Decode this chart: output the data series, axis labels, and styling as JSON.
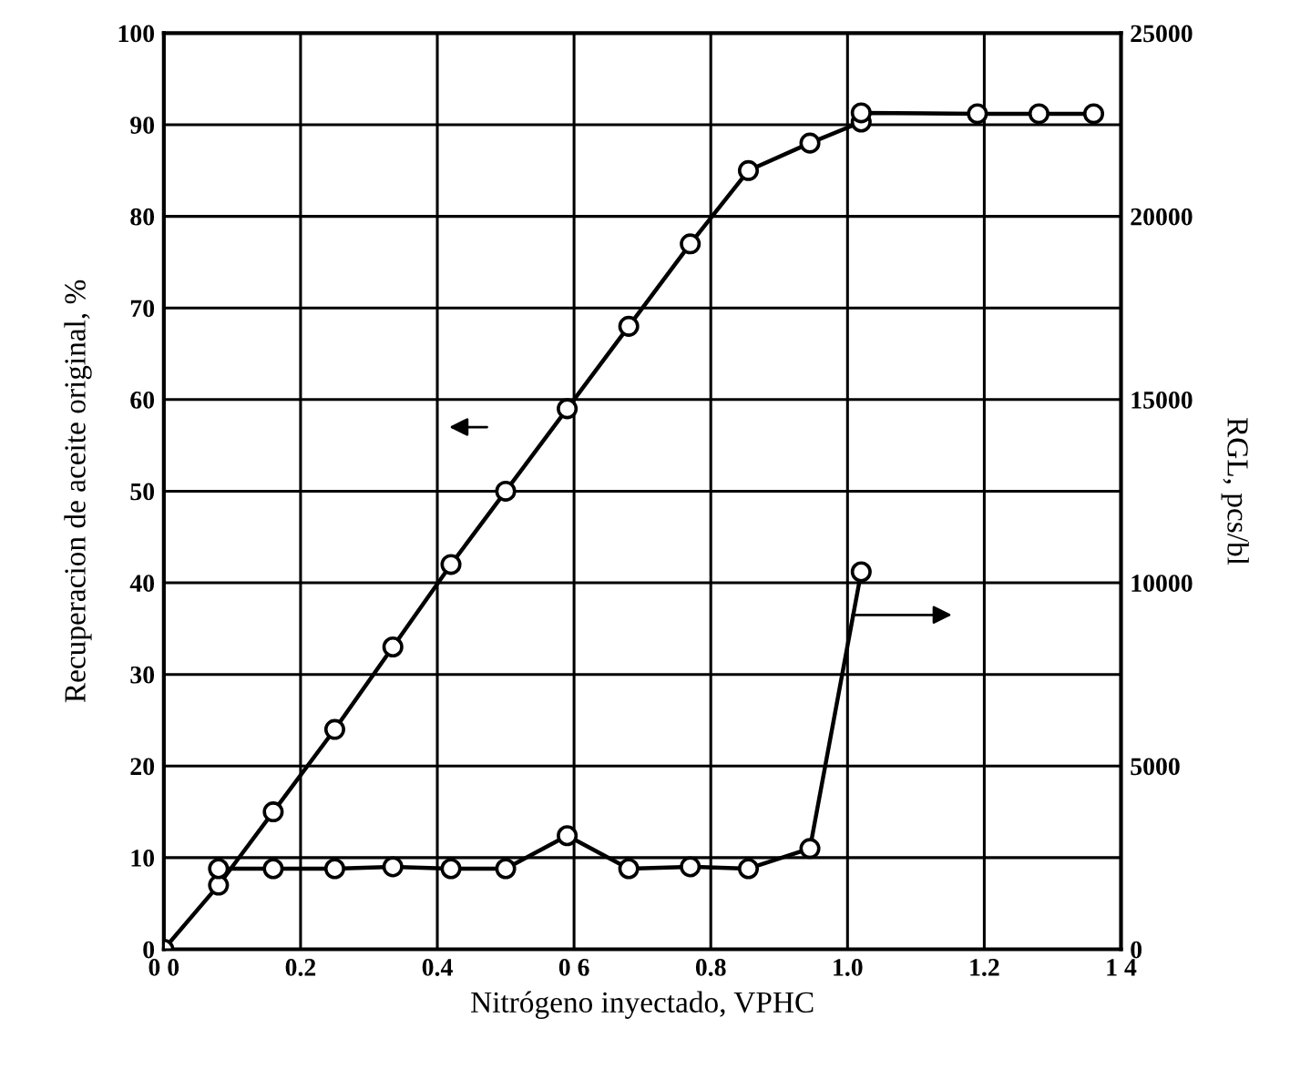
{
  "chart_data": {
    "type": "line",
    "xlabel": "Nitrógeno inyectado, VPHC",
    "ylabel": "Recuperacion de aceite original, %",
    "y2label": "RGL, pcs/bl",
    "xlim": [
      0,
      1.4
    ],
    "xticks": [
      {
        "value": 0,
        "label": "0 0"
      },
      0.2,
      0.4,
      {
        "value": 0.6,
        "label": "0 6"
      },
      0.8,
      {
        "value": 1.0,
        "label": "1.0"
      },
      1.2,
      {
        "value": 1.4,
        "label": "1 4"
      }
    ],
    "ylim": [
      0,
      100
    ],
    "yticks": [
      0,
      10,
      20,
      30,
      40,
      50,
      60,
      70,
      80,
      90,
      100
    ],
    "y2lim": [
      0,
      25000
    ],
    "y2ticks": [
      0,
      5000,
      10000,
      15000,
      20000,
      25000
    ],
    "grid": true,
    "marker": "circle",
    "line_style": "solid",
    "series": [
      {
        "color": "#000000",
        "x": [
          0,
          0.08,
          0.16,
          0.25,
          0.335,
          0.42,
          0.5,
          0.59,
          0.68,
          0.77,
          0.855,
          0.945,
          1.02,
          1.02,
          1.19,
          1.28,
          1.36
        ],
        "values": [
          0,
          7,
          15,
          24,
          33,
          42,
          50,
          59,
          68,
          77,
          85,
          88,
          90.3,
          91.3,
          91.2,
          91.2,
          91.2
        ]
      },
      {
        "color": "#000000",
        "axis": "y2",
        "x": [
          0.08,
          0.16,
          0.25,
          0.335,
          0.42,
          0.5,
          0.59,
          0.68,
          0.77,
          0.855,
          0.945,
          1.02
        ],
        "values": [
          2200,
          2200,
          2200,
          2250,
          2200,
          2200,
          3100,
          2200,
          2250,
          2200,
          2750,
          10300
        ]
      }
    ]
  }
}
